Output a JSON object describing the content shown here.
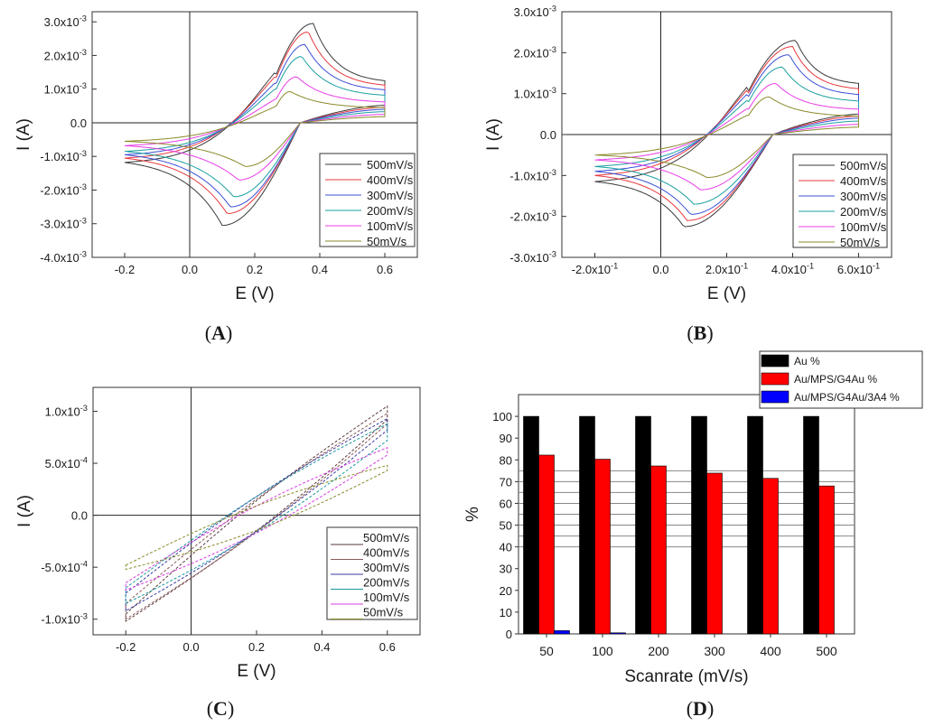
{
  "panels": [
    {
      "id": "A",
      "label_open": "(",
      "label_letter": "A",
      "label_close": ")"
    },
    {
      "id": "B",
      "label_open": "(",
      "label_letter": "B",
      "label_close": ")"
    },
    {
      "id": "C",
      "label_open": "(",
      "label_letter": "C",
      "label_close": ")"
    },
    {
      "id": "D",
      "label_open": "(",
      "label_letter": "D",
      "label_close": ")"
    }
  ],
  "chart_data": [
    {
      "panel": "A",
      "type": "line",
      "subtype": "cyclic-voltammogram",
      "xlabel": "E (V)",
      "ylabel": "I (A)",
      "xlim": [
        -0.3,
        0.7
      ],
      "ylim": [
        -0.004,
        0.0033
      ],
      "xticks": [
        -0.2,
        0,
        0.2,
        0.4,
        0.6
      ],
      "xtick_labels": [
        "-0.2",
        "0.0",
        "0.2",
        "0.4",
        "0.6"
      ],
      "yticks": [
        0.003,
        0.002,
        0.001,
        0,
        -0.001,
        -0.002,
        -0.003,
        -0.004
      ],
      "ytick_labels": [
        "3.0x10-3",
        "2.0x10-3",
        "1.0x10-3",
        "0.0",
        "-1.0x10-3",
        "-2.0x10-3",
        "-3.0x10-3",
        "-4.0x10-3"
      ],
      "zero_lines": true,
      "legend_position": "bottom-right",
      "line_style": "solid",
      "series": [
        {
          "name": "500mV/s",
          "color": "#3a3a3a",
          "anodic_peak": [
            0.38,
            0.00295
          ],
          "cathodic_peak": [
            0.1,
            -0.00305
          ],
          "start": [
            -0.2,
            -0.00118
          ],
          "switch_upper": 0.00125,
          "switch_lower": 0.00052
        },
        {
          "name": "400mV/s",
          "color": "#e8383d",
          "anodic_peak": [
            0.365,
            0.0027
          ],
          "cathodic_peak": [
            0.115,
            -0.0027
          ],
          "start": [
            -0.2,
            -0.00105
          ],
          "switch_upper": 0.00112,
          "switch_lower": 0.00046
        },
        {
          "name": "300mV/s",
          "color": "#3b50d6",
          "anodic_peak": [
            0.355,
            0.00233
          ],
          "cathodic_peak": [
            0.125,
            -0.0025
          ],
          "start": [
            -0.2,
            -0.00095
          ],
          "switch_upper": 0.00098,
          "switch_lower": 0.0004
        },
        {
          "name": "200mV/s",
          "color": "#1aa0a0",
          "anodic_peak": [
            0.345,
            0.00197
          ],
          "cathodic_peak": [
            0.135,
            -0.0022
          ],
          "start": [
            -0.2,
            -0.00085
          ],
          "switch_upper": 0.00082,
          "switch_lower": 0.00033
        },
        {
          "name": "100mV/s",
          "color": "#e83ce8",
          "anodic_peak": [
            0.33,
            0.00137
          ],
          "cathodic_peak": [
            0.15,
            -0.0017
          ],
          "start": [
            -0.2,
            -0.00068
          ],
          "switch_upper": 0.00062,
          "switch_lower": 0.00025
        },
        {
          "name": "50mV/s",
          "color": "#8a8a2a",
          "anodic_peak": [
            0.31,
            0.00093
          ],
          "cathodic_peak": [
            0.17,
            -0.0013
          ],
          "start": [
            -0.2,
            -0.00055
          ],
          "switch_upper": 0.00045,
          "switch_lower": 0.00018
        }
      ]
    },
    {
      "panel": "B",
      "type": "line",
      "subtype": "cyclic-voltammogram",
      "xlabel": "E (V)",
      "ylabel": "I (A)",
      "xlim": [
        -0.3,
        0.7
      ],
      "ylim": [
        -0.003,
        0.003
      ],
      "xticks": [
        -0.2,
        0,
        0.2,
        0.4,
        0.6
      ],
      "xtick_labels": [
        "-2.0x10-1",
        "0.0",
        "2.0x10-1",
        "4.0x10-1",
        "6.0x10-1"
      ],
      "yticks": [
        0.003,
        0.002,
        0.001,
        0,
        -0.001,
        -0.002,
        -0.003
      ],
      "ytick_labels": [
        "3.0x10-3",
        "2.0x10-3",
        "1.0x10-3",
        "0.0",
        "-1.0x10-3",
        "-2.0x10-3",
        "-3.0x10-3"
      ],
      "zero_lines": true,
      "legend_position": "bottom-right",
      "line_style": "solid",
      "series": [
        {
          "name": "500mV/s",
          "color": "#3a3a3a",
          "anodic_peak": [
            0.41,
            0.0023
          ],
          "cathodic_peak": [
            0.07,
            -0.00225
          ],
          "start": [
            -0.2,
            -0.00115
          ],
          "switch_upper": 0.00125,
          "switch_lower": 0.0005
        },
        {
          "name": "400mV/s",
          "color": "#e8383d",
          "anodic_peak": [
            0.4,
            0.00215
          ],
          "cathodic_peak": [
            0.08,
            -0.0021
          ],
          "start": [
            -0.2,
            -0.001
          ],
          "switch_upper": 0.00112,
          "switch_lower": 0.00045
        },
        {
          "name": "300mV/s",
          "color": "#3b50d6",
          "anodic_peak": [
            0.39,
            0.00195
          ],
          "cathodic_peak": [
            0.09,
            -0.00195
          ],
          "start": [
            -0.2,
            -0.0009
          ],
          "switch_upper": 0.00098,
          "switch_lower": 0.0004
        },
        {
          "name": "200mV/s",
          "color": "#1aa0a0",
          "anodic_peak": [
            0.37,
            0.00165
          ],
          "cathodic_peak": [
            0.1,
            -0.0017
          ],
          "start": [
            -0.2,
            -0.00078
          ],
          "switch_upper": 0.00082,
          "switch_lower": 0.00033
        },
        {
          "name": "100mV/s",
          "color": "#e83ce8",
          "anodic_peak": [
            0.35,
            0.00125
          ],
          "cathodic_peak": [
            0.12,
            -0.00135
          ],
          "start": [
            -0.2,
            -0.00062
          ],
          "switch_upper": 0.00062,
          "switch_lower": 0.00025
        },
        {
          "name": "50mV/s",
          "color": "#8a8a2a",
          "anodic_peak": [
            0.33,
            0.00092
          ],
          "cathodic_peak": [
            0.14,
            -0.00105
          ],
          "start": [
            -0.2,
            -0.0005
          ],
          "switch_upper": 0.00045,
          "switch_lower": 0.00018
        }
      ]
    },
    {
      "panel": "C",
      "type": "line",
      "subtype": "cyclic-voltammogram",
      "xlabel": "E (V)",
      "ylabel": "I (A)",
      "xlim": [
        -0.3,
        0.7
      ],
      "ylim": [
        -0.00115,
        0.00123
      ],
      "xticks": [
        -0.2,
        0,
        0.2,
        0.4,
        0.6
      ],
      "xtick_labels": [
        "-0.2",
        "0.0",
        "0.2",
        "0.4",
        "0.6"
      ],
      "yticks": [
        0.001,
        0.0005,
        0,
        -0.0005,
        -0.001
      ],
      "ytick_labels": [
        "1.0x10-3",
        "5.0x10-4",
        "0.0",
        "-5.0x10-4",
        "-1.0x10-3"
      ],
      "zero_lines": true,
      "legend_position": "bottom-right",
      "legend_style": "label-only",
      "line_style": "dashed",
      "series": [
        {
          "name": "500mV/s",
          "color": "#5a3a3a",
          "upper_end": 0.00105,
          "lower_end": 0.00092,
          "start_top": -0.00095,
          "start_bottom": -0.00102
        },
        {
          "name": "400mV/s",
          "color": "#8a5a5a",
          "upper_end": 0.00098,
          "lower_end": 0.00088,
          "start_top": -0.00085,
          "start_bottom": -0.001
        },
        {
          "name": "300mV/s",
          "color": "#3a3aa0",
          "upper_end": 0.00093,
          "lower_end": 0.00082,
          "start_top": -0.00075,
          "start_bottom": -0.00092
        },
        {
          "name": "200mV/s",
          "color": "#1a9aa0",
          "upper_end": 0.00088,
          "lower_end": 0.00072,
          "start_top": -0.0007,
          "start_bottom": -0.00085
        },
        {
          "name": "100mV/s",
          "color": "#d83ce0",
          "upper_end": 0.00065,
          "lower_end": 0.00058,
          "start_top": -0.00065,
          "start_bottom": -0.00072
        },
        {
          "name": "50mV/s",
          "color": "#8a8a2a",
          "upper_end": 0.00048,
          "lower_end": 0.00043,
          "start_top": -0.00048,
          "start_bottom": -0.00052
        }
      ]
    },
    {
      "panel": "D",
      "type": "bar",
      "xlabel": "Scanrate (mV/s)",
      "ylabel": "%",
      "ylim": [
        0,
        110
      ],
      "yticks": [
        0,
        10,
        20,
        30,
        40,
        50,
        60,
        70,
        80,
        90,
        100
      ],
      "categories": [
        "50",
        "100",
        "200",
        "300",
        "400",
        "500"
      ],
      "grid": "horizontal lines at 40, 45, 50, 55, 60, 65, 70, 75",
      "grid_values": [
        40,
        45,
        50,
        55,
        60,
        65,
        70,
        75
      ],
      "legend_position": "top-right",
      "series": [
        {
          "name": "Au %",
          "color": "#000000",
          "values": [
            100,
            100,
            100,
            100,
            100,
            100
          ]
        },
        {
          "name": "Au/MPS/G4Au %",
          "color": "#ff0000",
          "values": [
            82.2,
            80.3,
            77.2,
            73.9,
            71.5,
            68.0
          ]
        },
        {
          "name": "Au/MPS/G4Au/3A4 %",
          "color": "#0000ff",
          "values": [
            1.5,
            0.5,
            0,
            0,
            0,
            0
          ]
        }
      ]
    }
  ]
}
